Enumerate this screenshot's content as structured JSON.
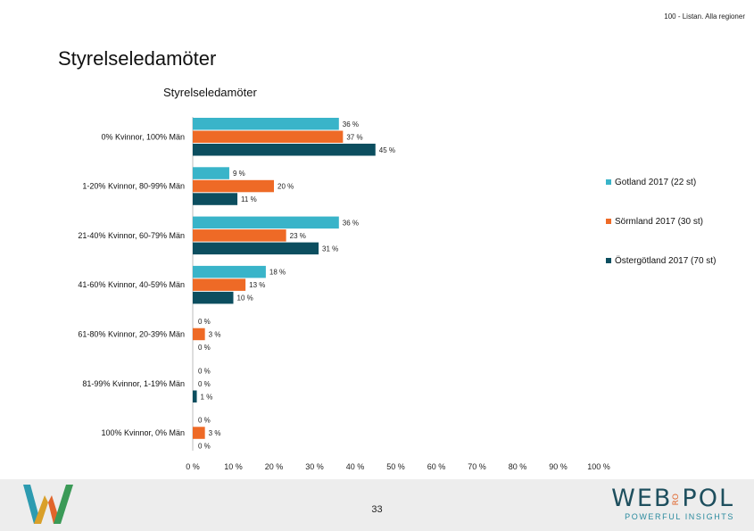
{
  "header": {
    "note": "100 - Listan. Alla regioner"
  },
  "page": {
    "title": "Styrelseledamöter",
    "number": "33"
  },
  "brand": {
    "name_left": "WEB",
    "name_mid": "RO",
    "name_right": "POL",
    "tagline": "POWERFUL INSIGHTS"
  },
  "chart_data": {
    "type": "bar",
    "orientation": "horizontal",
    "title": "Styrelseledamöter",
    "categories": [
      "0% Kvinnor, 100% Män",
      "1-20% Kvinnor, 80-99% Män",
      "21-40% Kvinnor, 60-79% Män",
      "41-60% Kvinnor, 40-59% Män",
      "61-80% Kvinnor, 20-39% Män",
      "81-99% Kvinnor, 1-19% Män",
      "100% Kvinnor, 0% Män"
    ],
    "series": [
      {
        "name": "Gotland 2017 (22 st)",
        "color": "#39b4c9",
        "values": [
          36,
          9,
          36,
          18,
          0,
          0,
          0
        ]
      },
      {
        "name": "Sörmland 2017 (30 st)",
        "color": "#ee6a26",
        "values": [
          37,
          20,
          23,
          13,
          3,
          0,
          3
        ]
      },
      {
        "name": "Östergötland 2017 (70 st)",
        "color": "#0c4e5f",
        "values": [
          45,
          11,
          31,
          10,
          0,
          1,
          0
        ]
      }
    ],
    "value_suffix": " %",
    "xlim": [
      0,
      100
    ],
    "xticks": [
      0,
      10,
      20,
      30,
      40,
      50,
      60,
      70,
      80,
      90,
      100
    ],
    "legend_position": "right",
    "grid": false
  }
}
